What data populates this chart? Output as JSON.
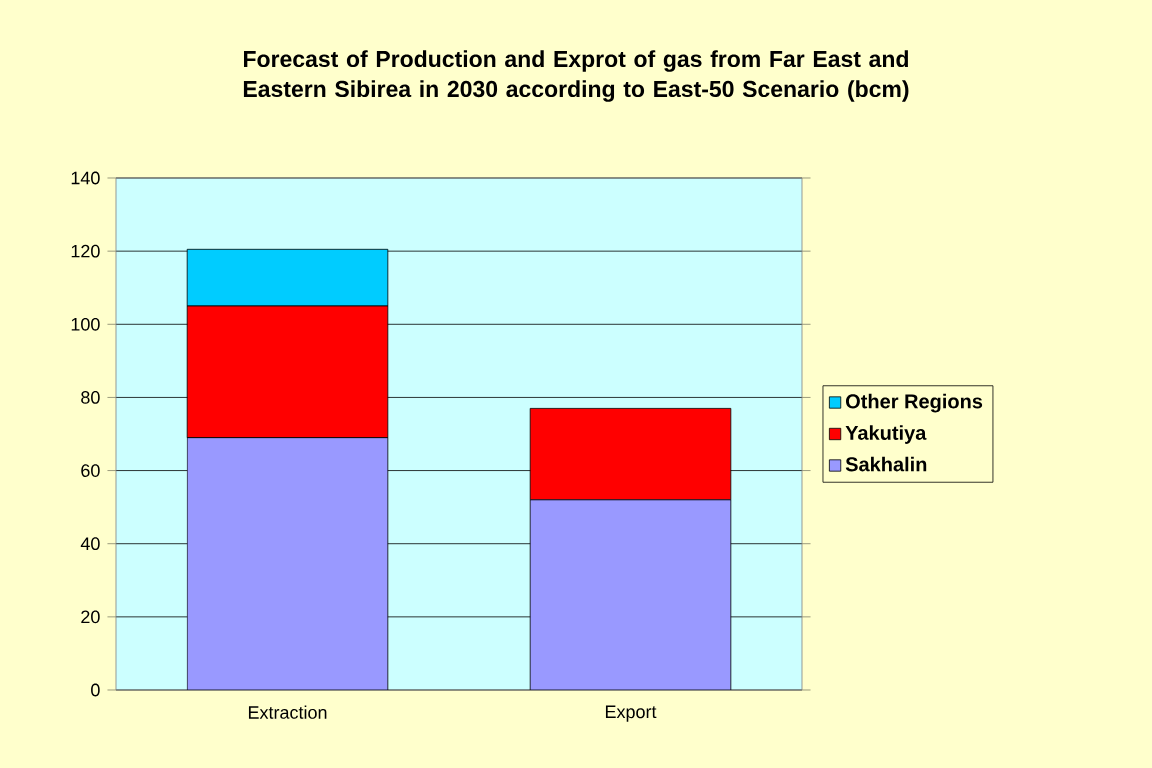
{
  "chart_data": {
    "type": "bar",
    "title": "Forecast of Production and Exprot of gas from Far East and Eastern Sibirea in 2030 according to East-50 Scenario (bcm)",
    "categories": [
      "Extraction",
      "Export"
    ],
    "stacked": true,
    "series": [
      {
        "name": "Sakhalin",
        "color": "#9999ff",
        "values": [
          69,
          52
        ]
      },
      {
        "name": "Yakutiya",
        "color": "#ff0000",
        "values": [
          36,
          25
        ]
      },
      {
        "name": "Other Regions",
        "color": "#00ccff",
        "values": [
          15.5,
          null
        ]
      }
    ],
    "ylim": [
      0,
      140
    ],
    "yticks": [
      0,
      20,
      40,
      60,
      80,
      100,
      120,
      140
    ],
    "grid": "y",
    "legend": "right"
  }
}
